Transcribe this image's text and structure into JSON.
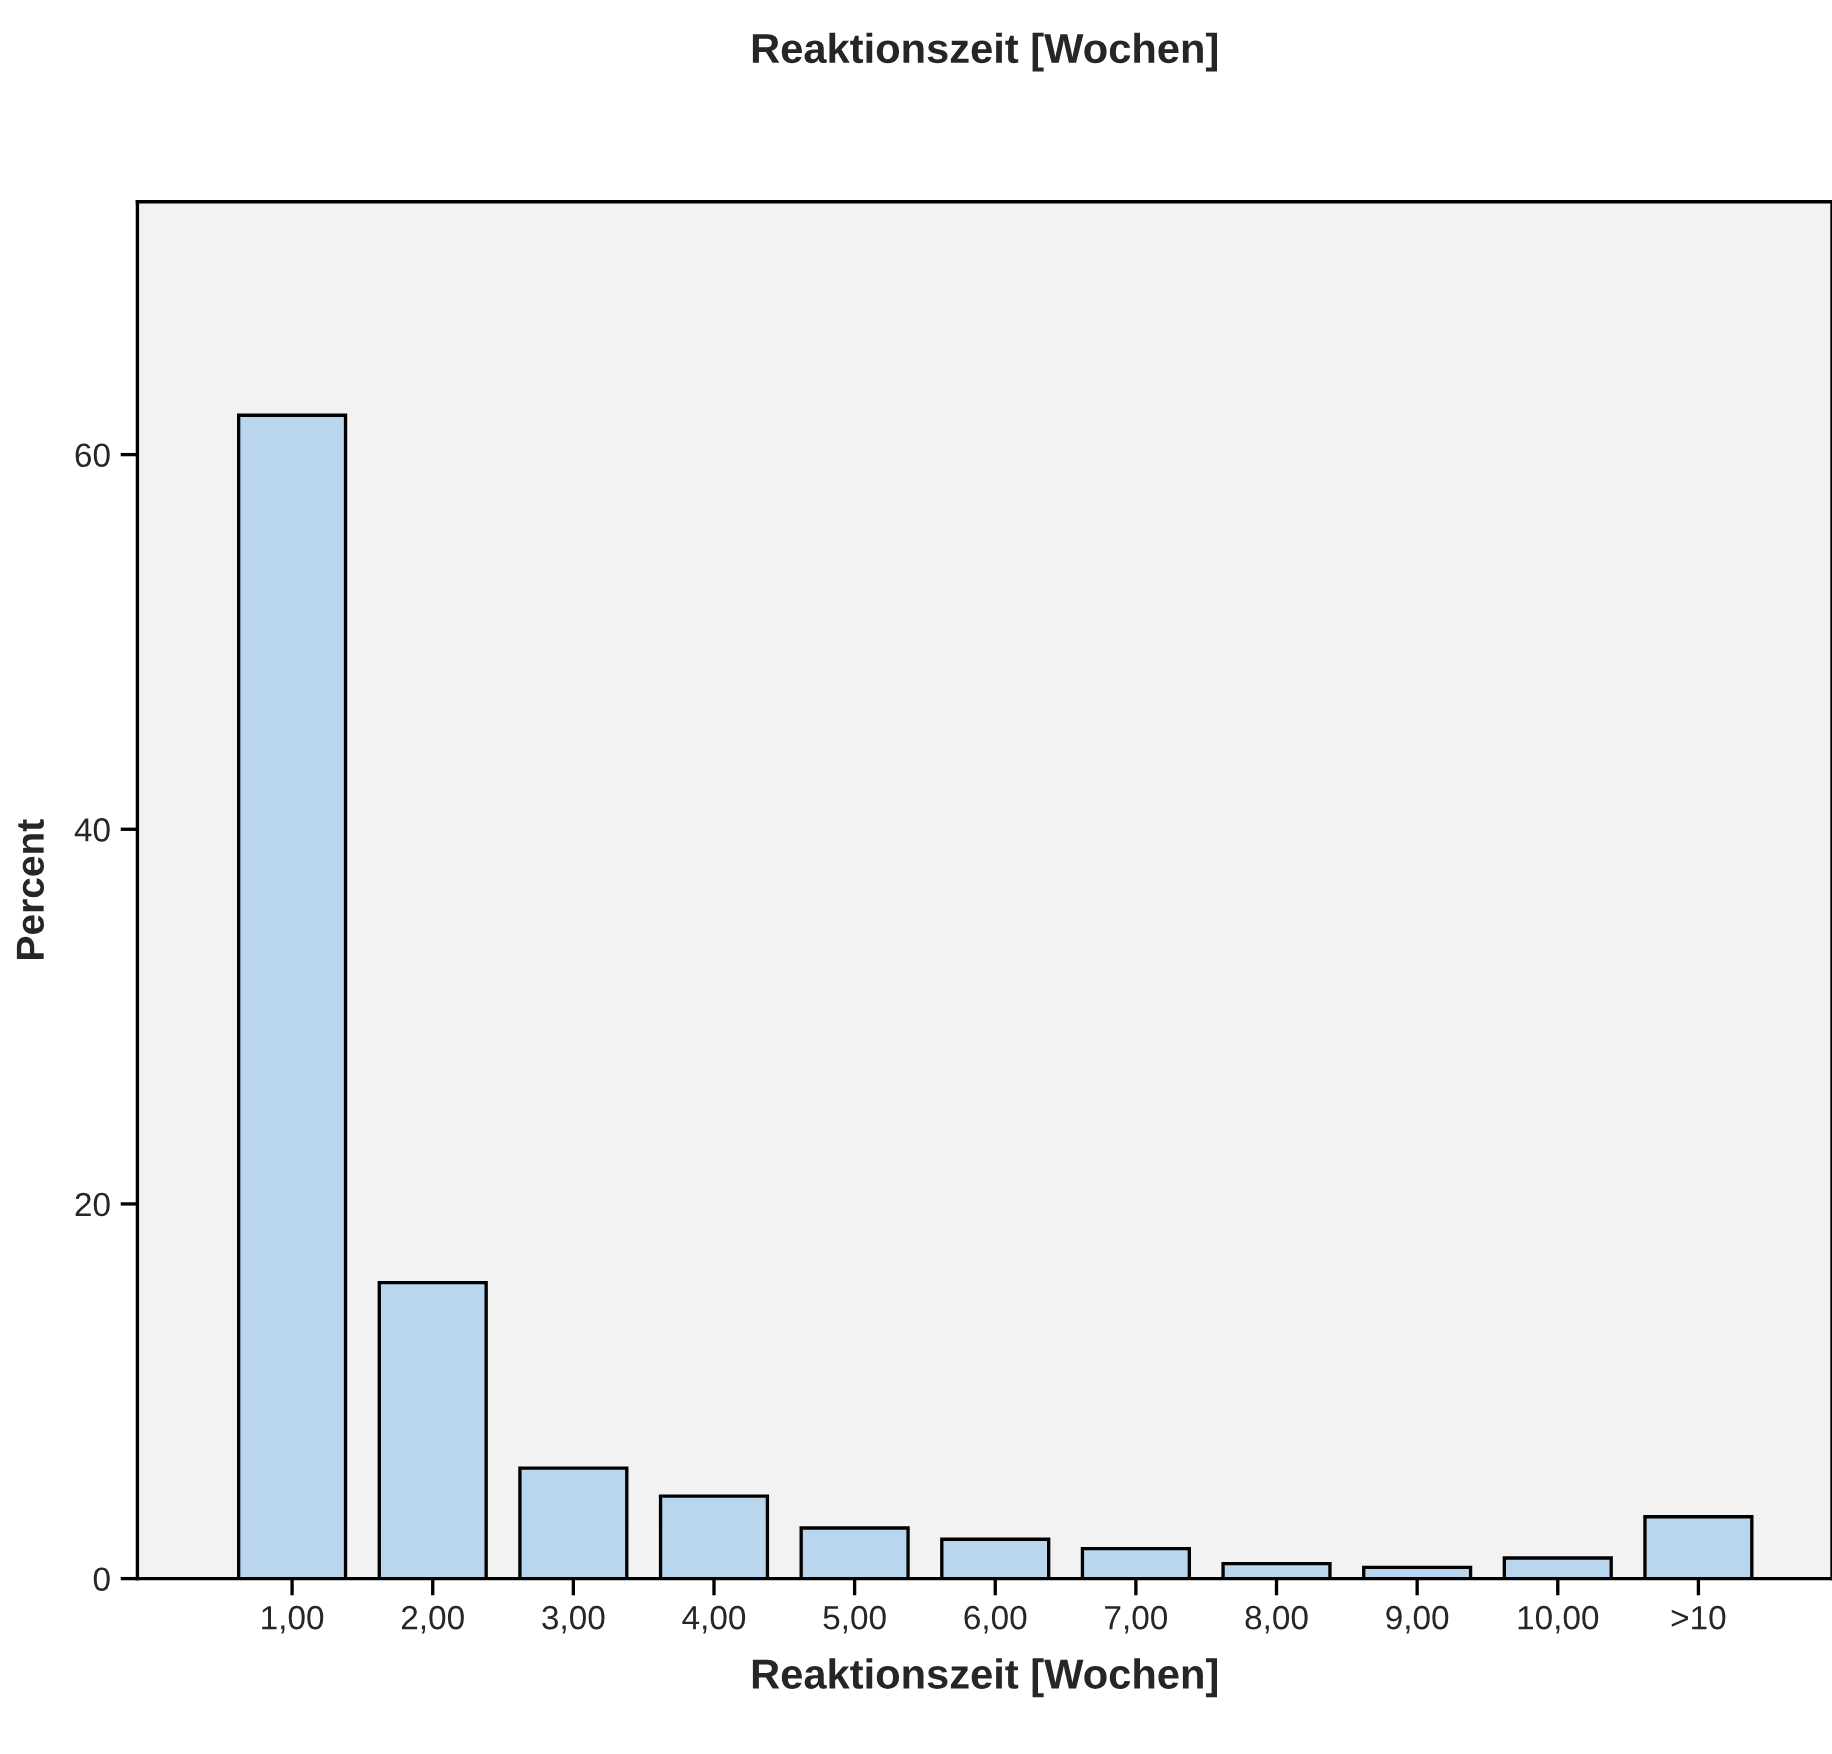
{
  "chart_data": {
    "type": "bar",
    "title": "Reaktionszeit [Wochen]",
    "xlabel": "Reaktionszeit [Wochen]",
    "ylabel": "Percent",
    "categories": [
      "1,00",
      "2,00",
      "3,00",
      "4,00",
      "5,00",
      "6,00",
      "7,00",
      "8,00",
      "9,00",
      "10,00",
      ">10"
    ],
    "values": [
      62.1,
      15.8,
      5.9,
      4.4,
      2.7,
      2.1,
      1.6,
      0.8,
      0.6,
      1.1,
      3.3
    ],
    "color": "#b9d6ee",
    "ylim": [
      0,
      73.5
    ],
    "yticks": [
      0,
      20,
      40,
      60
    ],
    "grid": false
  }
}
